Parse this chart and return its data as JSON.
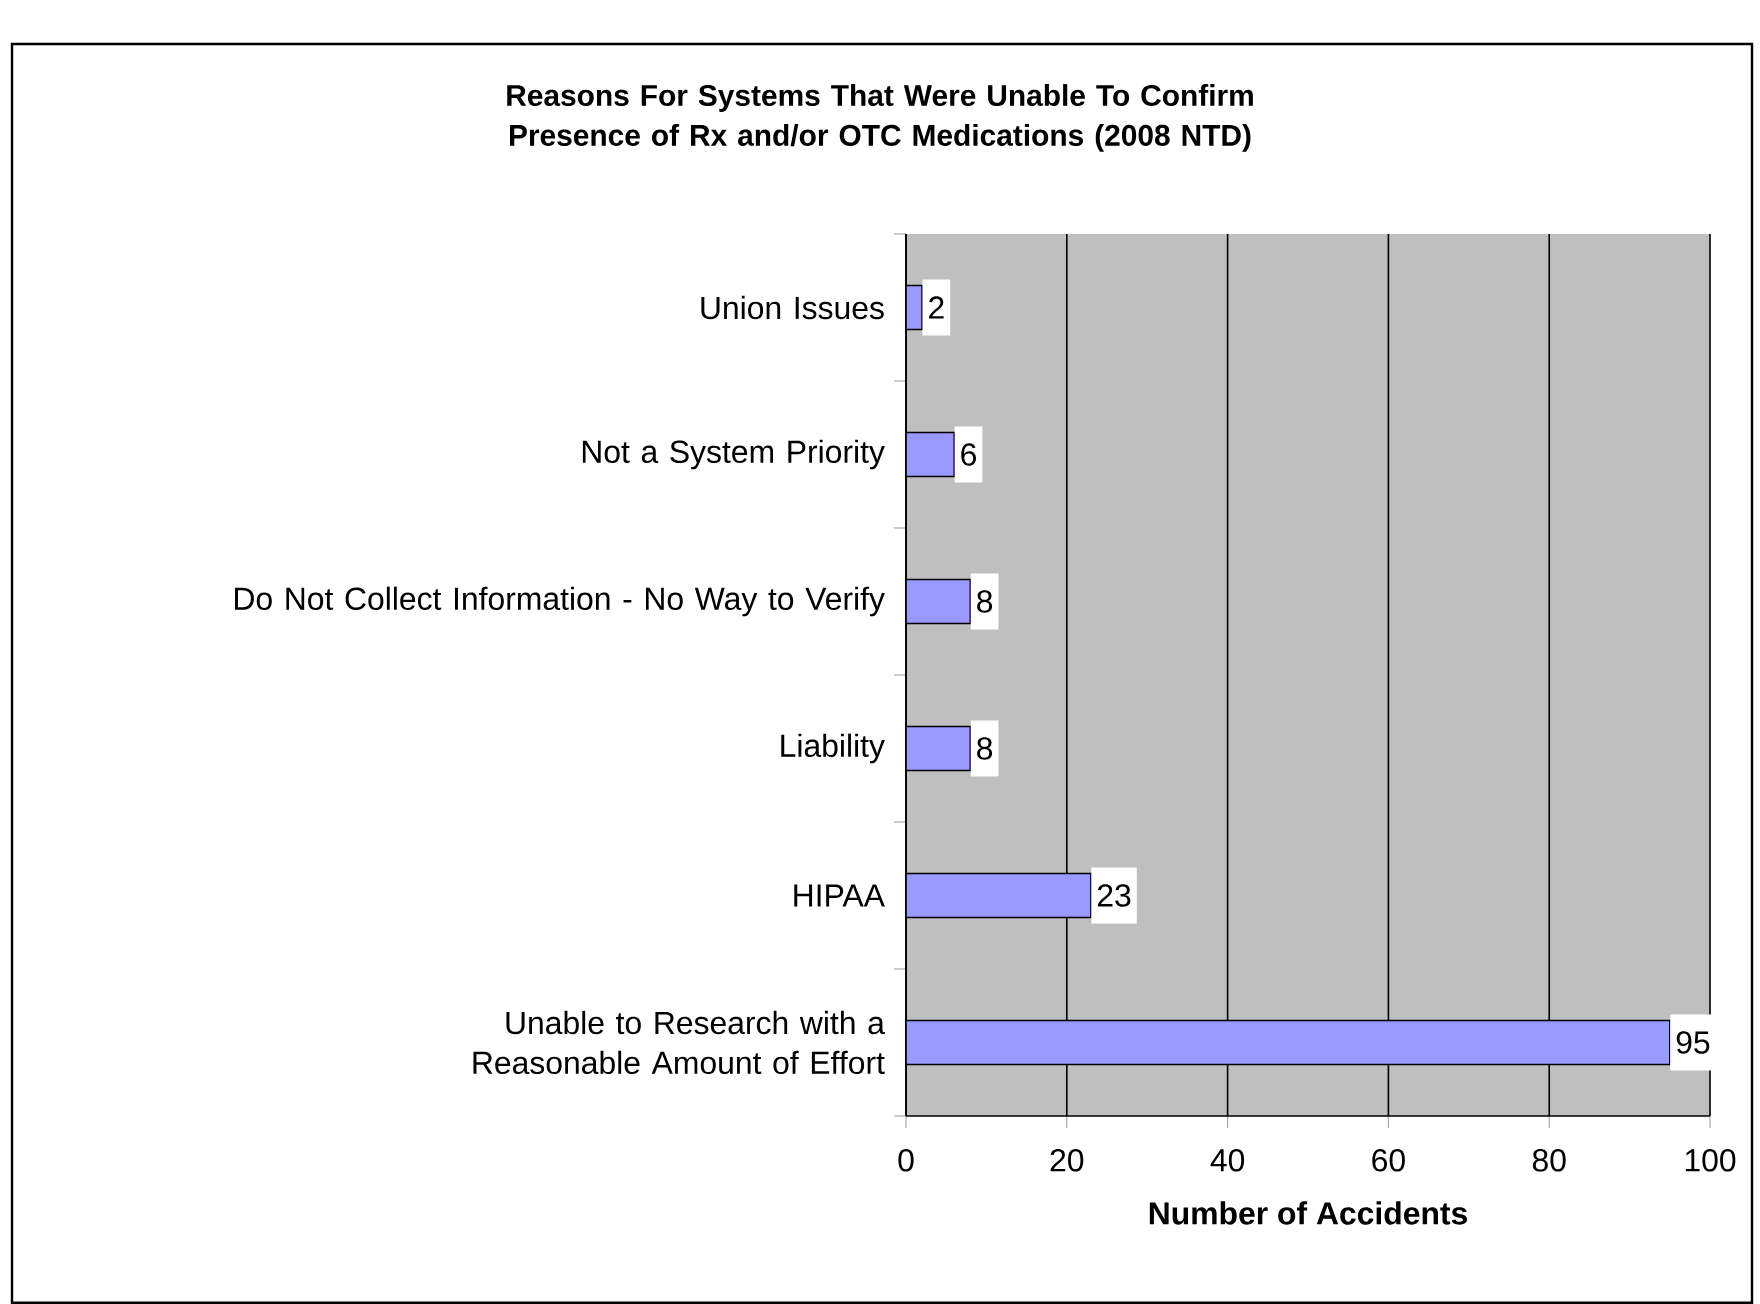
{
  "chart_data": {
    "type": "bar",
    "orientation": "horizontal",
    "title": "Reasons For Systems That Were Unable To Confirm Presence of Rx and/or OTC Medications (2008 NTD)",
    "xlabel": "Number of Accidents",
    "categories": [
      "Union Issues",
      "Not a System Priority",
      "Do Not Collect Information - No Way to Verify",
      "Liability",
      "HIPAA",
      "Unable to Research with a Reasonable Amount of Effort"
    ],
    "values": [
      2,
      6,
      8,
      8,
      23,
      95
    ],
    "color": "#9999ff",
    "xlim": [
      0,
      100
    ],
    "xticks": [
      0,
      20,
      40,
      60,
      80,
      100
    ],
    "grid": "x",
    "data_labels": true
  }
}
